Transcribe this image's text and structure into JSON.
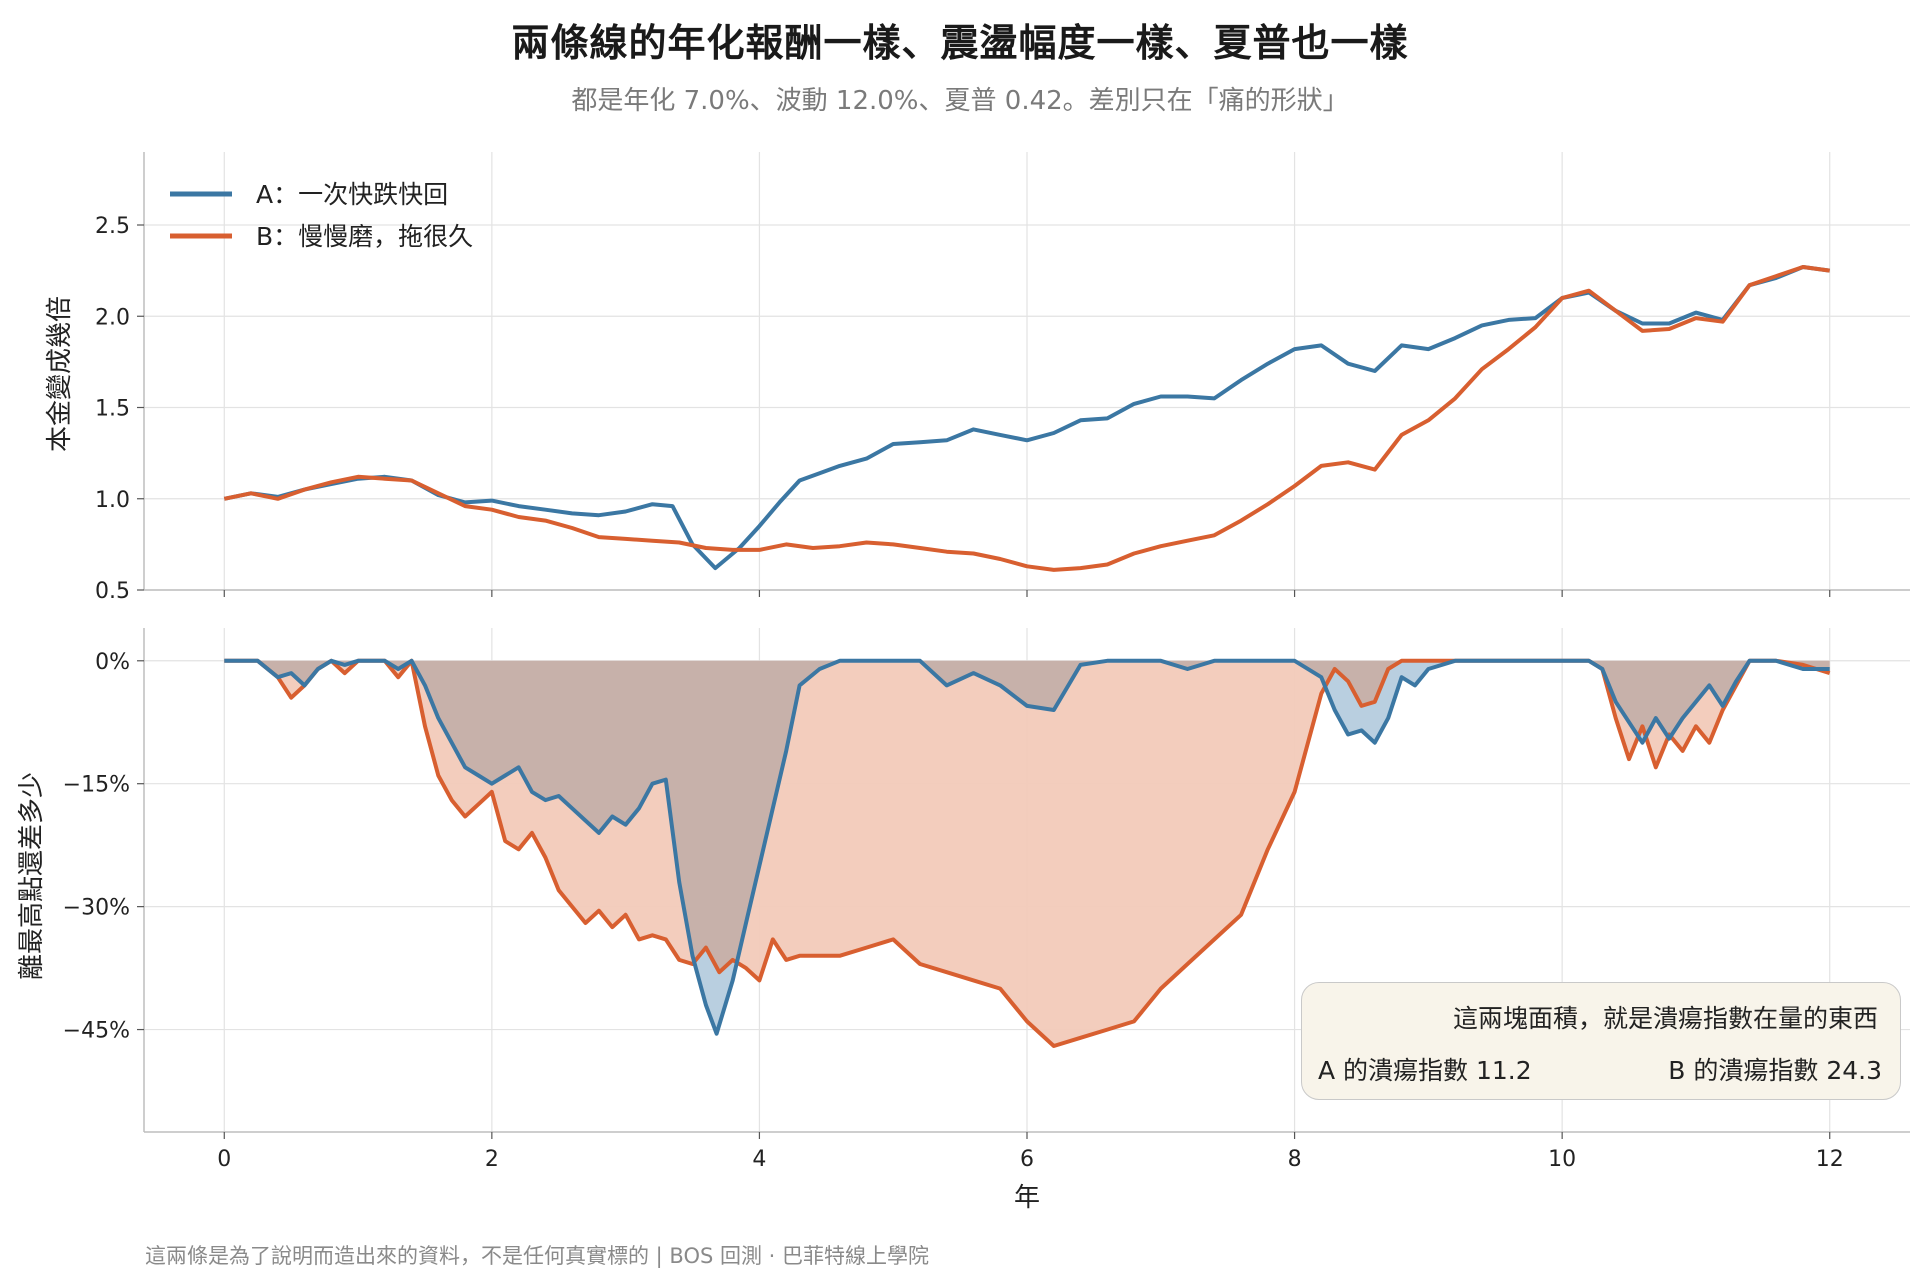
{
  "title": "兩條線的年化報酬一樣、震盪幅度一樣、夏普也一樣",
  "subtitle": "都是年化 7.0%、波動 12.0%、夏普 0.42。差別只在「痛的形狀」",
  "footer": "這兩條是為了說明而造出來的資料，不是任何真實標的 | BOS 回測 · 巴菲特線上學院",
  "annotation": {
    "title": "這兩塊面積，就是潰瘍指數在量的東西",
    "a_text": "A 的潰瘍指數 11.2",
    "b_text": "B 的潰瘍指數 24.3"
  },
  "colors": {
    "a": "#3b77a3",
    "b": "#d85f30",
    "a_fill": "#b9cfe0",
    "b_fill": "#f3cbbb",
    "overlap_fill": "#c7b1aa"
  },
  "chart_data": [
    {
      "type": "line",
      "panel": "top",
      "xlabel": "",
      "ylabel": "本金變成幾倍",
      "xlim": [
        -0.6,
        12.6
      ],
      "ylim": [
        0.5,
        2.9
      ],
      "yticks": [
        0.5,
        1.0,
        1.5,
        2.0,
        2.5
      ],
      "ytick_labels": [
        "0.5",
        "1.0",
        "1.5",
        "2.0",
        "2.5"
      ],
      "xticks": [
        0,
        2,
        4,
        6,
        8,
        10,
        12
      ],
      "grid": true,
      "legend": "top-left",
      "series": [
        {
          "name": "A：一次快跌快回",
          "x": [
            0,
            0.2,
            0.4,
            0.6,
            0.8,
            1.0,
            1.2,
            1.4,
            1.6,
            1.8,
            2.0,
            2.2,
            2.4,
            2.6,
            2.8,
            3.0,
            3.2,
            3.35,
            3.5,
            3.67,
            3.85,
            4.0,
            4.15,
            4.3,
            4.45,
            4.6,
            4.8,
            5.0,
            5.2,
            5.4,
            5.6,
            5.8,
            6.0,
            6.2,
            6.4,
            6.6,
            6.8,
            7.0,
            7.2,
            7.4,
            7.6,
            7.8,
            8.0,
            8.2,
            8.4,
            8.6,
            8.8,
            9.0,
            9.2,
            9.4,
            9.6,
            9.8,
            10.0,
            10.2,
            10.4,
            10.6,
            10.8,
            11.0,
            11.2,
            11.4,
            11.6,
            11.8,
            12.0
          ],
          "values": [
            1.0,
            1.03,
            1.01,
            1.05,
            1.08,
            1.11,
            1.12,
            1.1,
            1.02,
            0.98,
            0.99,
            0.96,
            0.94,
            0.92,
            0.91,
            0.93,
            0.97,
            0.96,
            0.75,
            0.62,
            0.73,
            0.85,
            0.98,
            1.1,
            1.14,
            1.18,
            1.22,
            1.3,
            1.31,
            1.32,
            1.38,
            1.35,
            1.32,
            1.36,
            1.43,
            1.44,
            1.52,
            1.56,
            1.56,
            1.55,
            1.65,
            1.74,
            1.82,
            1.84,
            1.74,
            1.7,
            1.84,
            1.82,
            1.88,
            1.95,
            1.98,
            1.99,
            2.1,
            2.13,
            2.03,
            1.96,
            1.96,
            2.02,
            1.98,
            2.17,
            2.21,
            2.27,
            2.25
          ]
        },
        {
          "name": "B：慢慢磨，拖很久",
          "x": [
            0,
            0.2,
            0.4,
            0.6,
            0.8,
            1.0,
            1.2,
            1.4,
            1.6,
            1.8,
            2.0,
            2.2,
            2.4,
            2.6,
            2.8,
            3.0,
            3.2,
            3.4,
            3.6,
            3.8,
            4.0,
            4.2,
            4.4,
            4.6,
            4.8,
            5.0,
            5.2,
            5.4,
            5.6,
            5.8,
            6.0,
            6.2,
            6.4,
            6.6,
            6.8,
            7.0,
            7.2,
            7.4,
            7.6,
            7.8,
            8.0,
            8.2,
            8.4,
            8.6,
            8.8,
            9.0,
            9.2,
            9.4,
            9.6,
            9.8,
            10.0,
            10.2,
            10.4,
            10.6,
            10.8,
            11.0,
            11.2,
            11.4,
            11.6,
            11.8,
            12.0
          ],
          "values": [
            1.0,
            1.03,
            1.0,
            1.05,
            1.09,
            1.12,
            1.11,
            1.1,
            1.03,
            0.96,
            0.94,
            0.9,
            0.88,
            0.84,
            0.79,
            0.78,
            0.77,
            0.76,
            0.73,
            0.72,
            0.72,
            0.75,
            0.73,
            0.74,
            0.76,
            0.75,
            0.73,
            0.71,
            0.7,
            0.67,
            0.63,
            0.61,
            0.62,
            0.64,
            0.7,
            0.74,
            0.77,
            0.8,
            0.88,
            0.97,
            1.07,
            1.18,
            1.2,
            1.16,
            1.35,
            1.43,
            1.55,
            1.71,
            1.82,
            1.94,
            2.1,
            2.14,
            2.03,
            1.92,
            1.93,
            1.99,
            1.97,
            2.17,
            2.22,
            2.27,
            2.25
          ]
        }
      ]
    },
    {
      "type": "area",
      "panel": "bottom",
      "xlabel": "年",
      "ylabel": "離最高點還差多少",
      "xlim": [
        -0.6,
        12.6
      ],
      "ylim": [
        -57.5,
        4
      ],
      "yticks": [
        0,
        -15,
        -30,
        -45
      ],
      "ytick_labels": [
        "0%",
        "−15%",
        "−30%",
        "−45%"
      ],
      "xticks": [
        0,
        2,
        4,
        6,
        8,
        10,
        12
      ],
      "xtick_labels": [
        "0",
        "2",
        "4",
        "6",
        "8",
        "10",
        "12"
      ],
      "grid": true,
      "series": [
        {
          "name": "A：一次快跌快回",
          "x": [
            0,
            0.25,
            0.4,
            0.5,
            0.6,
            0.7,
            0.8,
            0.9,
            1.0,
            1.2,
            1.3,
            1.4,
            1.5,
            1.6,
            1.7,
            1.8,
            1.9,
            2.0,
            2.1,
            2.2,
            2.3,
            2.4,
            2.5,
            2.6,
            2.7,
            2.8,
            2.9,
            3.0,
            3.1,
            3.2,
            3.3,
            3.4,
            3.5,
            3.6,
            3.68,
            3.8,
            3.9,
            4.0,
            4.1,
            4.2,
            4.3,
            4.45,
            4.6,
            4.8,
            5.0,
            5.2,
            5.4,
            5.6,
            5.8,
            6.0,
            6.2,
            6.4,
            6.6,
            6.8,
            7.0,
            7.2,
            7.4,
            7.6,
            7.8,
            8.0,
            8.2,
            8.3,
            8.4,
            8.5,
            8.6,
            8.7,
            8.8,
            8.9,
            9.0,
            9.2,
            9.4,
            9.6,
            9.8,
            10.0,
            10.2,
            10.3,
            10.4,
            10.5,
            10.6,
            10.7,
            10.8,
            10.9,
            11.0,
            11.1,
            11.2,
            11.3,
            11.4,
            11.6,
            11.8,
            12.0
          ],
          "values": [
            0,
            0,
            -2,
            -1.5,
            -3,
            -1,
            0,
            -0.5,
            0,
            0,
            -1,
            0,
            -3,
            -7,
            -10,
            -13,
            -14,
            -15,
            -14,
            -13,
            -16,
            -17,
            -16.5,
            -18,
            -19.5,
            -21,
            -19,
            -20,
            -18,
            -15,
            -14.5,
            -27,
            -36,
            -42,
            -45.5,
            -39,
            -32,
            -25,
            -18,
            -11,
            -3,
            -1,
            0,
            0,
            0,
            0,
            -3,
            -1.5,
            -3,
            -5.5,
            -6,
            -0.5,
            0,
            0,
            0,
            -1,
            0,
            0,
            0,
            0,
            -2,
            -6,
            -9,
            -8.5,
            -10,
            -7,
            -2,
            -3,
            -1,
            0,
            0,
            0,
            0,
            0,
            0,
            -1,
            -5,
            -7.5,
            -10,
            -7,
            -9.5,
            -7,
            -5,
            -3,
            -5.5,
            -2.5,
            0,
            0,
            -1,
            -1
          ]
        },
        {
          "name": "B：慢慢磨，拖很久",
          "x": [
            0,
            0.25,
            0.4,
            0.5,
            0.6,
            0.7,
            0.8,
            0.9,
            1.0,
            1.2,
            1.3,
            1.4,
            1.5,
            1.6,
            1.7,
            1.8,
            1.9,
            2.0,
            2.1,
            2.2,
            2.3,
            2.4,
            2.5,
            2.6,
            2.7,
            2.8,
            2.9,
            3.0,
            3.1,
            3.2,
            3.3,
            3.4,
            3.5,
            3.6,
            3.7,
            3.8,
            3.9,
            4.0,
            4.1,
            4.2,
            4.3,
            4.45,
            4.6,
            4.8,
            5.0,
            5.2,
            5.4,
            5.6,
            5.8,
            6.0,
            6.2,
            6.4,
            6.6,
            6.8,
            7.0,
            7.2,
            7.4,
            7.6,
            7.8,
            8.0,
            8.2,
            8.3,
            8.4,
            8.5,
            8.6,
            8.7,
            8.8,
            8.9,
            9.0,
            9.2,
            9.4,
            9.6,
            9.8,
            10.0,
            10.2,
            10.3,
            10.4,
            10.5,
            10.6,
            10.7,
            10.8,
            10.9,
            11.0,
            11.1,
            11.2,
            11.3,
            11.4,
            11.6,
            11.8,
            12.0
          ],
          "values": [
            0,
            0,
            -2,
            -4.5,
            -3,
            -1,
            0,
            -1.5,
            0,
            0,
            -2,
            0,
            -8,
            -14,
            -17,
            -19,
            -17.5,
            -16,
            -22,
            -23,
            -21,
            -24,
            -28,
            -30,
            -32,
            -30.5,
            -32.5,
            -31,
            -34,
            -33.5,
            -34,
            -36.5,
            -37,
            -35,
            -38,
            -36.5,
            -37.5,
            -39,
            -34,
            -36.5,
            -36,
            -36,
            -36,
            -35,
            -34,
            -37,
            -38,
            -39,
            -40,
            -44,
            -47,
            -46,
            -45,
            -44,
            -40,
            -37,
            -34,
            -31,
            -23,
            -16,
            -4,
            -1,
            -2.5,
            -5.5,
            -5,
            -1,
            0,
            0,
            0,
            0,
            0,
            0,
            0,
            0,
            0,
            -1,
            -7,
            -12,
            -8,
            -13,
            -9,
            -11,
            -8,
            -10,
            -6,
            -3,
            0,
            0,
            -0.5,
            -1.5
          ]
        }
      ]
    }
  ]
}
